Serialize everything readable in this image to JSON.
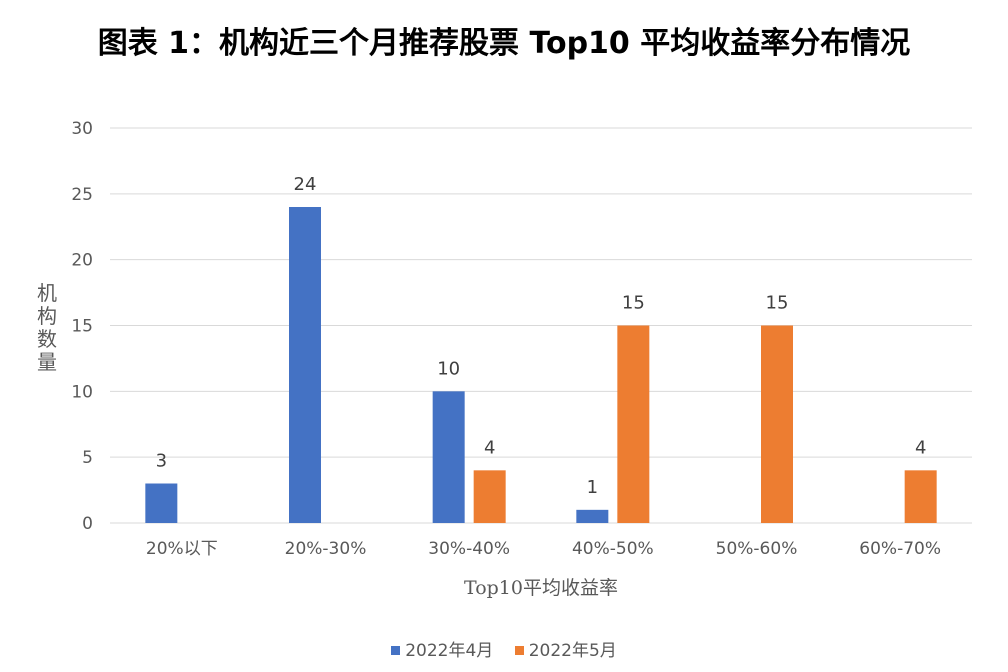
{
  "title": "图表 1：机构近三个月推荐股票 Top10 平均收益率分布情况",
  "chart_data": {
    "type": "bar",
    "categories": [
      "20%以下",
      "20%-30%",
      "30%-40%",
      "40%-50%",
      "50%-60%",
      "60%-70%"
    ],
    "series": [
      {
        "name": "2022年4月",
        "values": [
          3,
          24,
          10,
          1,
          0,
          0
        ],
        "color": "#4472C4"
      },
      {
        "name": "2022年5月",
        "values": [
          0,
          0,
          4,
          15,
          15,
          4
        ],
        "color": "#ED7D31"
      }
    ],
    "xlabel": "Top10平均收益率",
    "ylabel": "机构数量",
    "ylim": [
      0,
      30
    ],
    "yticks": [
      0,
      5,
      10,
      15,
      20,
      25,
      30
    ],
    "grid": true,
    "legend_position": "bottom"
  }
}
